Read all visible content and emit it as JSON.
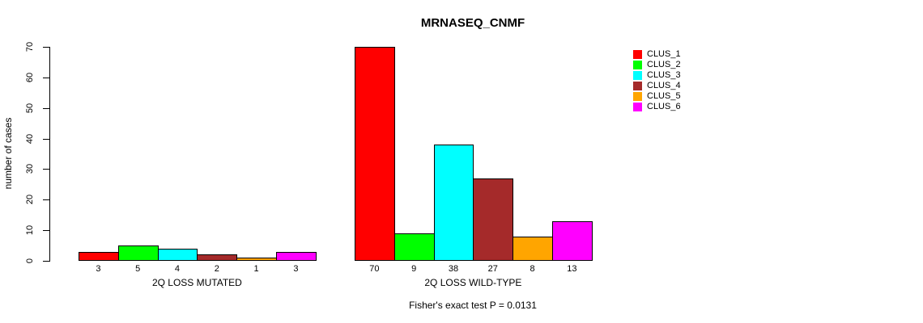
{
  "title": "MRNASEQ_CNMF",
  "footnote": "Fisher's exact test P = 0.0131",
  "chart_data": {
    "type": "bar",
    "title": "MRNASEQ_CNMF",
    "xlabel": "",
    "ylabel": "number of cases",
    "ylim": [
      0,
      70
    ],
    "yticks": [
      0,
      10,
      20,
      30,
      40,
      50,
      60,
      70
    ],
    "grid": false,
    "legend_position": "right",
    "annotation": "Fisher's exact test P = 0.0131",
    "categories": [
      "2Q LOSS MUTATED",
      "2Q LOSS WILD-TYPE"
    ],
    "series": [
      {
        "name": "CLUS_1",
        "color": "#FF0000",
        "values": [
          3,
          70
        ]
      },
      {
        "name": "CLUS_2",
        "color": "#00FF00",
        "values": [
          5,
          9
        ]
      },
      {
        "name": "CLUS_3",
        "color": "#00FFFF",
        "values": [
          4,
          38
        ]
      },
      {
        "name": "CLUS_4",
        "color": "#A52A2A",
        "values": [
          2,
          27
        ]
      },
      {
        "name": "CLUS_5",
        "color": "#FFA500",
        "values": [
          1,
          8
        ]
      },
      {
        "name": "CLUS_6",
        "color": "#FF00FF",
        "values": [
          3,
          13
        ]
      }
    ],
    "bar_value_labels": {
      "2Q LOSS MUTATED": [
        3,
        5,
        4,
        2,
        1,
        3
      ],
      "2Q LOSS WILD-TYPE": [
        70,
        9,
        38,
        27,
        8,
        13
      ]
    }
  }
}
